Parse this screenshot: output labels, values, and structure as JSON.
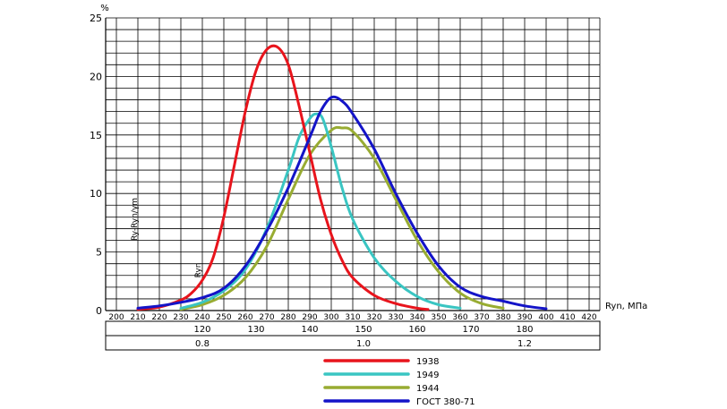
{
  "chart_data": {
    "type": "line",
    "y_unit": "%",
    "xlabel": "Ryn, МПа",
    "ylim": [
      0,
      25
    ],
    "y_ticks": [
      0,
      5,
      10,
      15,
      20,
      25
    ],
    "y_tick_labels": [
      "0",
      "5",
      "10",
      "15",
      "20",
      "25"
    ],
    "xlim": [
      195,
      425
    ],
    "x_ticks": [
      200,
      210,
      220,
      230,
      240,
      250,
      260,
      270,
      280,
      290,
      300,
      310,
      320,
      330,
      340,
      350,
      360,
      370,
      380,
      390,
      400,
      410,
      420
    ],
    "x_tick_labels": [
      "200",
      "210",
      "220",
      "230",
      "240",
      "250",
      "260",
      "270",
      "280",
      "290",
      "300",
      "310",
      "320",
      "330",
      "340",
      "350",
      "360",
      "370",
      "380",
      "390",
      "400",
      "410",
      "420"
    ],
    "grid": true,
    "annotations": [
      {
        "text": "Ry-Ryn/γm"
      },
      {
        "text": "Ryn"
      }
    ],
    "secondary_scales": [
      {
        "values": [
          120,
          130,
          140,
          150,
          160,
          170,
          180
        ],
        "labels": [
          "120",
          "130",
          "140",
          "150",
          "160",
          "170",
          "180"
        ],
        "primary_x": [
          240,
          265,
          290,
          315,
          340,
          365,
          390
        ]
      },
      {
        "values": [
          0.8,
          1.0,
          1.2
        ],
        "labels": [
          "0.8",
          "1.0",
          "1.2"
        ],
        "primary_x": [
          240,
          315,
          390
        ]
      }
    ],
    "legend_position": "bottom-center",
    "series": [
      {
        "name": "1938",
        "color": "#e8141c",
        "x": [
          210,
          220,
          230,
          235,
          240,
          245,
          250,
          255,
          260,
          265,
          270,
          275,
          280,
          285,
          290,
          295,
          300,
          305,
          310,
          320,
          330,
          340,
          345
        ],
        "y": [
          0.1,
          0.3,
          0.9,
          1.5,
          2.6,
          4.5,
          8.0,
          12.5,
          17.0,
          20.5,
          22.3,
          22.5,
          21.0,
          17.5,
          13.5,
          9.5,
          6.5,
          4.3,
          2.8,
          1.3,
          0.6,
          0.2,
          0.1
        ]
      },
      {
        "name": "1949",
        "color": "#3ac5c2",
        "x": [
          230,
          240,
          250,
          260,
          270,
          280,
          285,
          290,
          293,
          296,
          300,
          305,
          310,
          320,
          330,
          340,
          350,
          360
        ],
        "y": [
          0.2,
          0.7,
          1.7,
          3.5,
          7.0,
          12.0,
          14.8,
          16.4,
          16.8,
          16.4,
          14.0,
          10.5,
          7.8,
          4.5,
          2.5,
          1.2,
          0.5,
          0.2
        ]
      },
      {
        "name": "1944",
        "color": "#98ac32",
        "x": [
          230,
          240,
          250,
          260,
          270,
          280,
          290,
          300,
          305,
          310,
          320,
          330,
          340,
          350,
          360,
          370,
          380
        ],
        "y": [
          0.1,
          0.5,
          1.3,
          2.8,
          5.5,
          9.5,
          13.3,
          15.4,
          15.6,
          15.3,
          13.0,
          9.5,
          6.0,
          3.3,
          1.5,
          0.6,
          0.2
        ]
      },
      {
        "name": "ГОСТ 380-71",
        "color": "#1414c8",
        "x": [
          210,
          220,
          230,
          240,
          250,
          260,
          270,
          280,
          290,
          295,
          300,
          305,
          310,
          320,
          330,
          340,
          350,
          360,
          370,
          380,
          390,
          400
        ],
        "y": [
          0.2,
          0.4,
          0.7,
          1.1,
          1.9,
          3.8,
          6.8,
          10.5,
          14.8,
          17.0,
          18.2,
          17.9,
          16.8,
          13.8,
          10.0,
          6.6,
          3.8,
          2.0,
          1.2,
          0.8,
          0.4,
          0.15
        ]
      }
    ]
  }
}
